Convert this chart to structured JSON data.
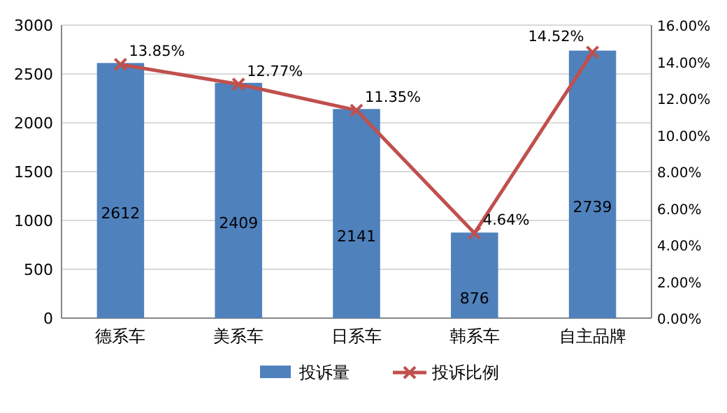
{
  "chart_data": {
    "type": "bar",
    "categories": [
      "德系车",
      "美系车",
      "日系车",
      "韩系车",
      "自主品牌"
    ],
    "series": [
      {
        "name": "投诉量",
        "color": "#4f81bd",
        "values": [
          2612,
          2409,
          2141,
          876,
          2739
        ],
        "value_labels": [
          "2612",
          "2409",
          "2141",
          "876",
          "2739"
        ]
      },
      {
        "name": "投诉比例",
        "type": "line",
        "axis": "y2",
        "color": "#c0504d",
        "marker": "cross",
        "values": [
          13.85,
          12.77,
          11.35,
          4.64,
          14.52
        ],
        "value_labels": [
          "13.85%",
          "12.77%",
          "11.35%",
          "4.64%",
          "14.52%"
        ]
      }
    ],
    "ylim": [
      0,
      3000
    ],
    "yticks": [
      0,
      500,
      1000,
      1500,
      2000,
      2500,
      3000
    ],
    "y2lim": [
      0,
      16
    ],
    "y2ticks": [
      {
        "value": 0,
        "label": "0.00%"
      },
      {
        "value": 2,
        "label": "2.00%"
      },
      {
        "value": 4,
        "label": "4.00%"
      },
      {
        "value": 6,
        "label": "6.00%"
      },
      {
        "value": 8,
        "label": "8.00%"
      },
      {
        "value": 10,
        "label": "10.00%"
      },
      {
        "value": 12,
        "label": "12.00%"
      },
      {
        "value": 14,
        "label": "14.00%"
      },
      {
        "value": 16,
        "label": "16.00%"
      }
    ],
    "grid": "y",
    "legend": "bottom"
  }
}
